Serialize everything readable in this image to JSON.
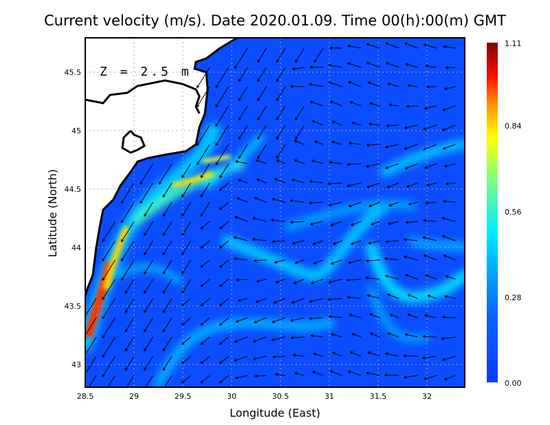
{
  "chart_data": {
    "type": "heatmap",
    "subtype": "vector-field-over-speed-map",
    "title": "Current velocity (m/s). Date 2020.01.09. Time 00(h):00(m) GMT",
    "annotation": "Z = 2.5 m",
    "xlabel": "Longitude (East)",
    "ylabel": "Latitude (North)",
    "xlim": [
      28.5,
      32.4
    ],
    "ylim": [
      42.8,
      45.8
    ],
    "xticks": [
      "28.5",
      "29",
      "29.5",
      "30",
      "30.5",
      "31",
      "31.5",
      "32"
    ],
    "yticks": [
      "43",
      "43.5",
      "44",
      "44.5",
      "45",
      "45.5"
    ],
    "grid": true,
    "colorbar": {
      "min": 0.0,
      "max": 1.11,
      "ticks": [
        "0.00",
        "0.28",
        "0.56",
        "0.84",
        "1.11"
      ],
      "colormap": "jet",
      "placement": "right"
    },
    "features": [
      {
        "description": "coastal jet max",
        "lon": 28.65,
        "lat": 43.4,
        "speed": 1.0
      },
      {
        "description": "jet near",
        "lon": 29.6,
        "lat": 44.55,
        "speed": 0.75
      },
      {
        "description": "eastern jet",
        "lon": 32.0,
        "lat": 43.7,
        "speed": 0.4
      }
    ],
    "colors": {
      "sea_background": "#0a4cff",
      "land": "#ffffff",
      "coast": "#000000",
      "arrows": "#000000"
    }
  }
}
